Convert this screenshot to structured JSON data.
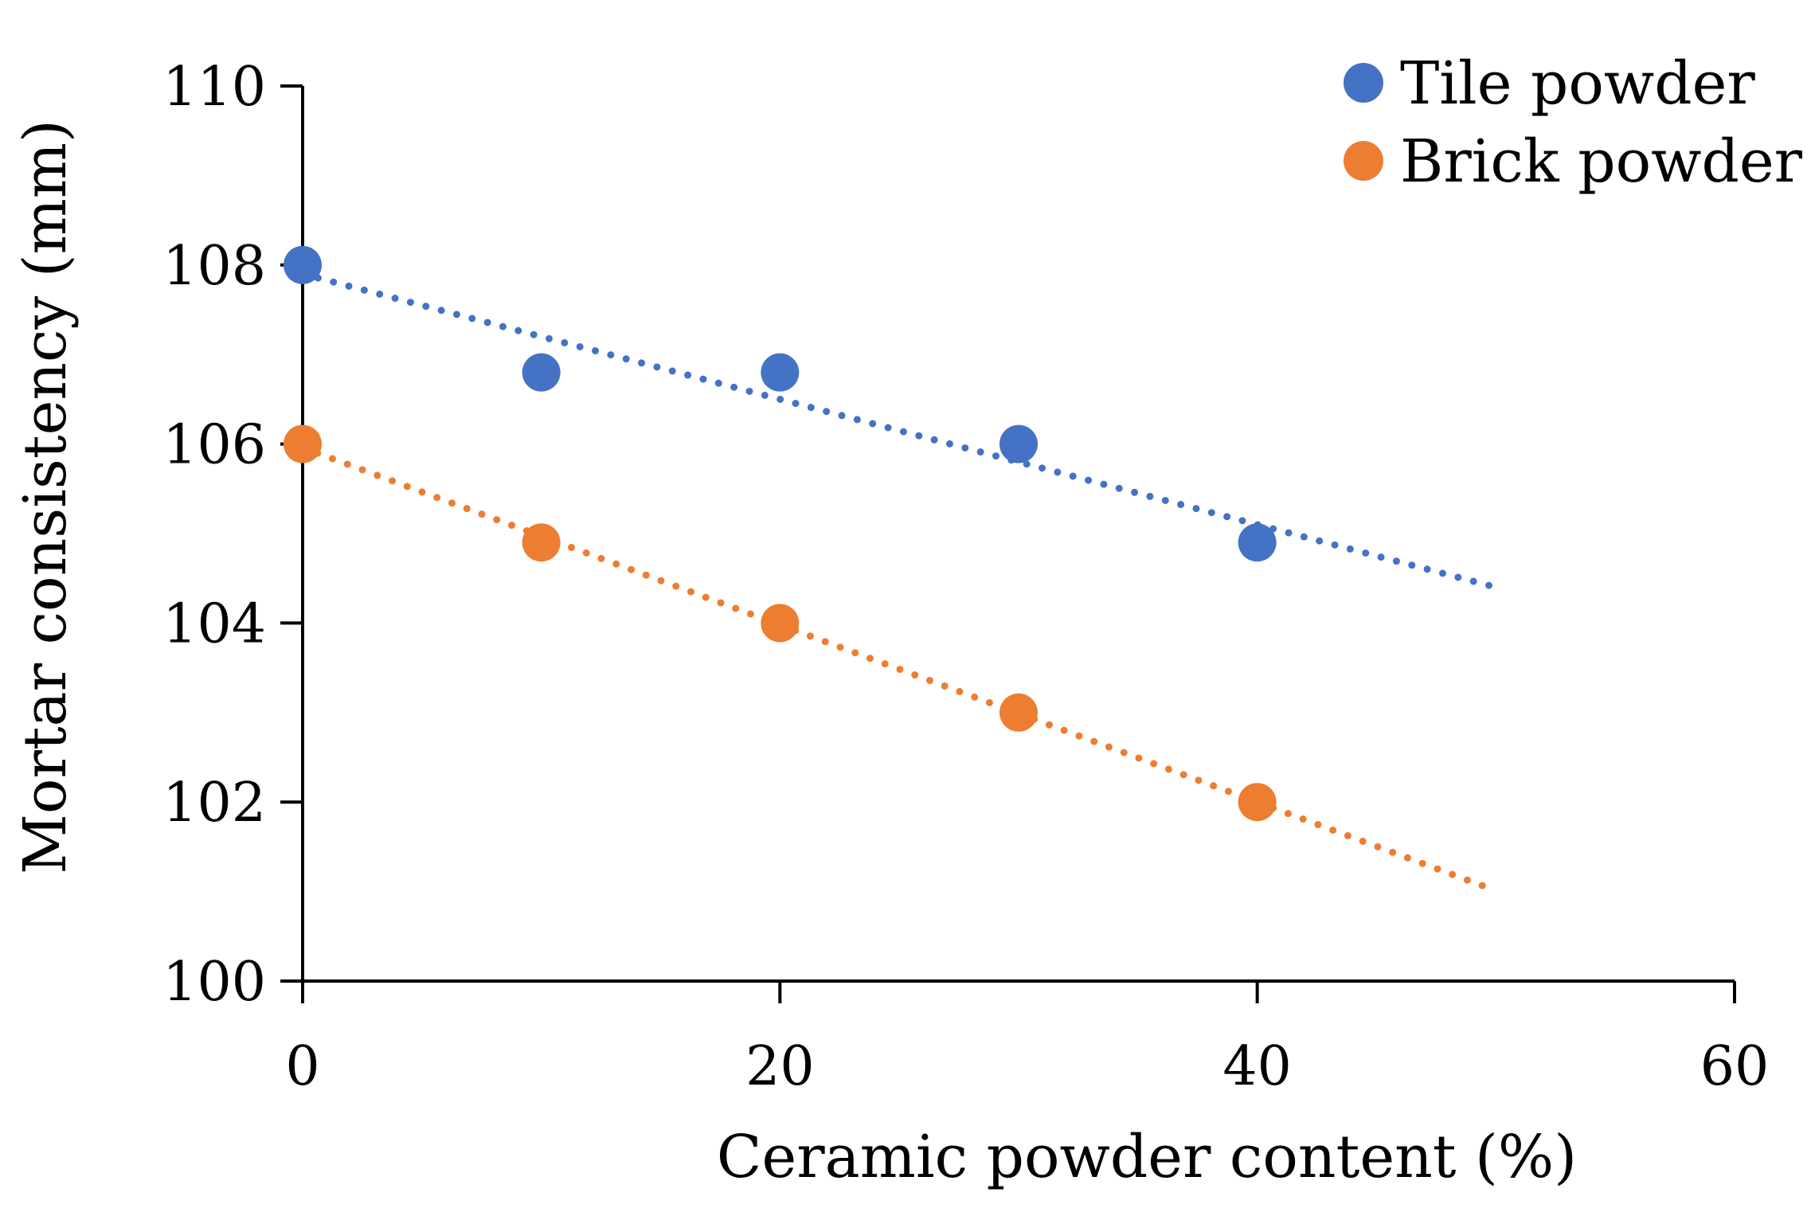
{
  "chart_data": {
    "type": "scatter",
    "title": "",
    "xlabel": "Ceramic powder content (%)",
    "ylabel": "Mortar consistency (mm)",
    "xlim": [
      0,
      60
    ],
    "ylim": [
      100,
      110
    ],
    "xticks": [
      0,
      20,
      40,
      60
    ],
    "yticks": [
      100,
      102,
      104,
      106,
      108,
      110
    ],
    "grid": false,
    "legend_position": "top-right",
    "series": [
      {
        "name": "Tile powder",
        "color": "#4472C4",
        "x": [
          0,
          10,
          20,
          30,
          40
        ],
        "y": [
          108,
          106.8,
          106.8,
          106,
          104.9
        ],
        "trendline": {
          "type": "linear",
          "style": "dotted",
          "x_range": [
            0,
            50
          ]
        }
      },
      {
        "name": "Brick powder",
        "color": "#ED7D31",
        "x": [
          0,
          10,
          20,
          30,
          40
        ],
        "y": [
          106,
          104.9,
          104,
          103,
          102
        ],
        "trendline": {
          "type": "linear",
          "style": "dotted",
          "x_range": [
            0,
            50
          ]
        }
      }
    ]
  }
}
